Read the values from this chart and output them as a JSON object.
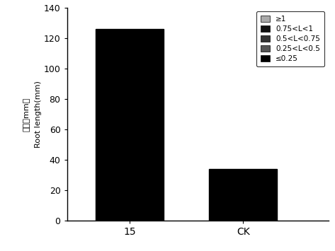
{
  "categories": [
    "15",
    "CK"
  ],
  "values": [
    126,
    34
  ],
  "bar_color": "#000000",
  "ylim": [
    0,
    140
  ],
  "yticks": [
    0,
    20,
    40,
    60,
    80,
    100,
    120,
    140
  ],
  "ylabel_chinese": "根长（mm）",
  "ylabel_english": "Root length(mm)",
  "legend_entries": [
    {
      "label": "≥1",
      "color": "#aaaaaa"
    },
    {
      "label": "0.75<L<1",
      "color": "#111111"
    },
    {
      "label": "0.5<L<0.75",
      "color": "#333333"
    },
    {
      "label": "0.25<L<0.5",
      "color": "#555555"
    },
    {
      "label": "≤0.25",
      "color": "#000000"
    }
  ],
  "bar_width": 0.6,
  "x_positions": [
    0,
    1
  ],
  "figsize": [
    4.73,
    3.55
  ],
  "dpi": 100
}
